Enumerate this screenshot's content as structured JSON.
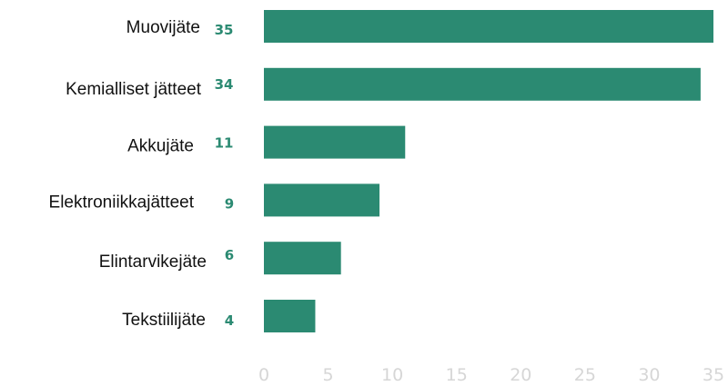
{
  "chart_data": {
    "type": "bar",
    "orientation": "horizontal",
    "categories": [
      "Muovijäte",
      "Kemialliset jätteet",
      "Akkujäte",
      "Elektroniikkajätteet",
      "Elintarvikejäte",
      "Tekstiilijäte"
    ],
    "values": [
      35,
      34,
      11,
      9,
      6,
      4
    ],
    "value_labels": [
      "35",
      "34",
      "11",
      "9",
      "6",
      "4"
    ],
    "x_ticks": [
      "0",
      "5",
      "10",
      "15",
      "20",
      "25",
      "30",
      "35"
    ],
    "xlim": [
      0,
      35
    ],
    "grid": false,
    "legend": "none",
    "colors": {
      "bar": "#2b8a72",
      "value_label": "#2b8a72",
      "tick": "#d6d6d6",
      "category": "#111111"
    }
  }
}
